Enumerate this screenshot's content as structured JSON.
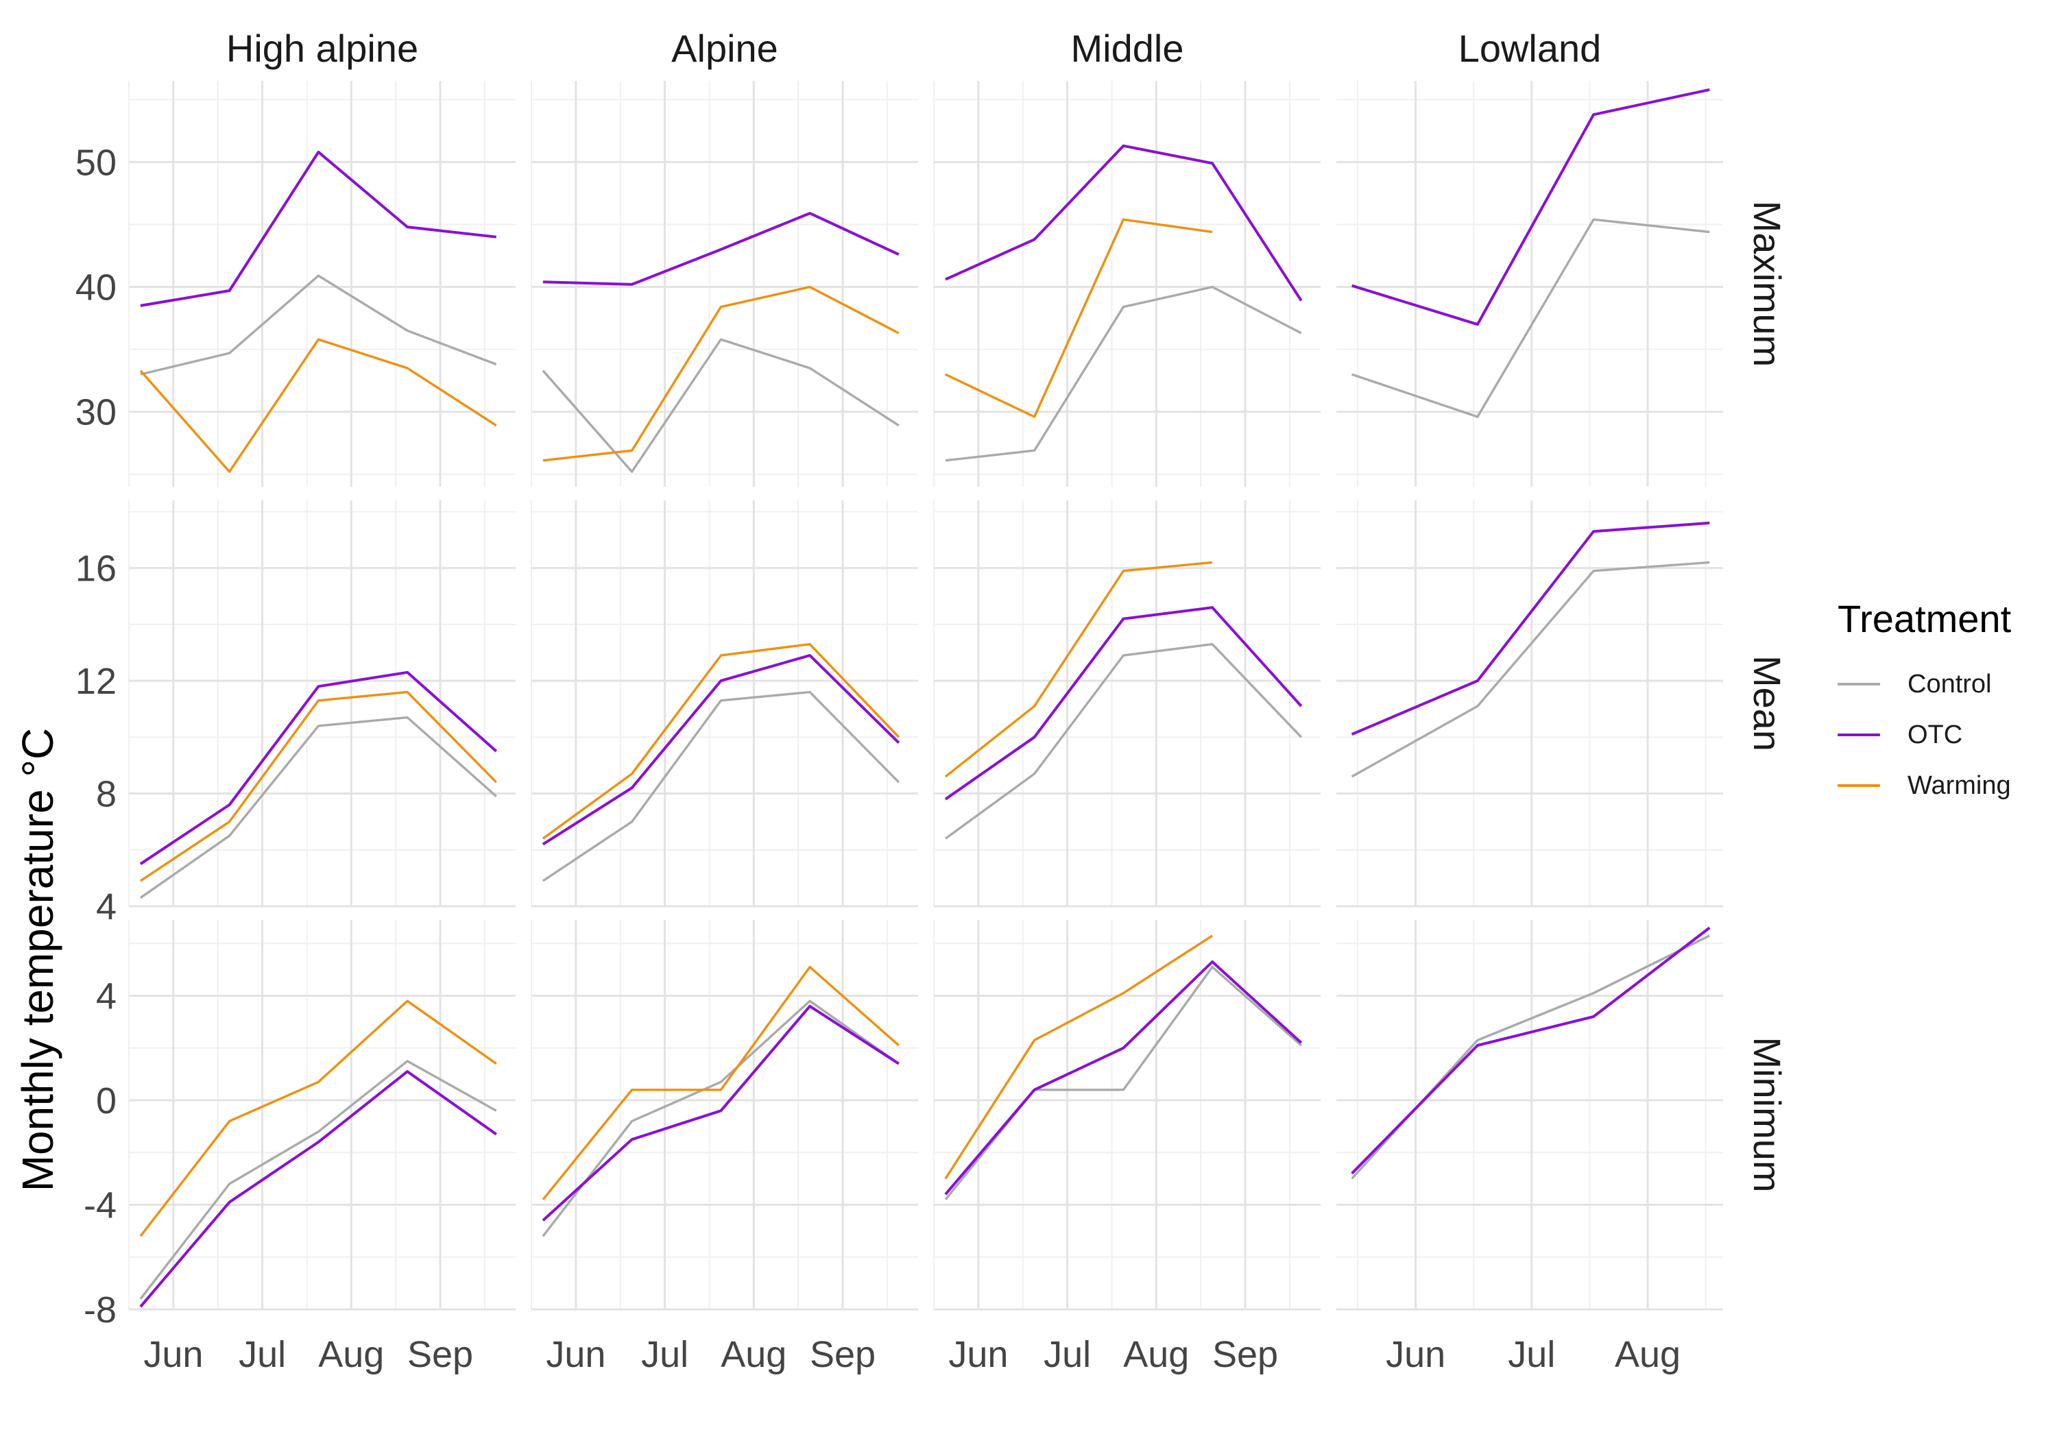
{
  "chart_data": {
    "type": "line",
    "ylabel": "Monthly temperature °C",
    "facet_columns": [
      "High alpine",
      "Alpine",
      "Middle",
      "Lowland"
    ],
    "facet_rows": [
      "Maximum",
      "Mean",
      "Minimum"
    ],
    "months": [
      "Jun",
      "Jul",
      "Aug",
      "Sep"
    ],
    "lowland_months": [
      "Jun",
      "Jul",
      "Aug"
    ],
    "x_dates": [
      "May 20",
      "Jun 19",
      "Jul 19",
      "Aug 18",
      "Sep 17"
    ],
    "rows": [
      {
        "name": "Maximum",
        "ylim": [
          24,
          56.5
        ],
        "yticks": [
          30,
          40,
          50
        ],
        "ytick_labels": [
          "30",
          "40",
          "50"
        ],
        "panels": {
          "High alpine": {
            "Control": [
              33.0,
              34.7,
              40.9,
              36.5,
              33.8
            ],
            "OTC": [
              38.5,
              39.7,
              50.8,
              44.8,
              44.0
            ],
            "Warming": [
              33.3,
              25.2,
              35.8,
              33.5,
              28.9
            ]
          },
          "Alpine": {
            "Control": [
              33.3,
              25.2,
              35.8,
              33.5,
              28.9
            ],
            "OTC": [
              40.4,
              40.2,
              43.0,
              45.9,
              42.6
            ],
            "Warming": [
              26.1,
              26.9,
              38.4,
              40.0,
              36.3
            ]
          },
          "Middle": {
            "Control": [
              26.1,
              26.9,
              38.4,
              40.0,
              36.3
            ],
            "OTC": [
              40.6,
              43.8,
              51.3,
              49.9,
              38.9
            ],
            "Warming": [
              33.0,
              29.6,
              45.4,
              44.4,
              null
            ]
          },
          "Lowland": {
            "Control": [
              33.0,
              29.6,
              45.4,
              44.4
            ],
            "OTC": [
              40.1,
              37.0,
              53.8,
              55.8
            ],
            "Warming": [
              null,
              null,
              null,
              null
            ]
          }
        }
      },
      {
        "name": "Mean",
        "ylim": [
          4,
          18.4
        ],
        "yticks": [
          4,
          8,
          12,
          16
        ],
        "ytick_labels": [
          "4",
          "8",
          "12",
          "16"
        ],
        "panels": {
          "High alpine": {
            "Control": [
              4.3,
              6.5,
              10.4,
              10.7,
              7.9
            ],
            "OTC": [
              5.5,
              7.6,
              11.8,
              12.3,
              9.5
            ],
            "Warming": [
              4.9,
              7.0,
              11.3,
              11.6,
              8.4
            ]
          },
          "Alpine": {
            "Control": [
              4.9,
              7.0,
              11.3,
              11.6,
              8.4
            ],
            "OTC": [
              6.2,
              8.2,
              12.0,
              12.9,
              9.8
            ],
            "Warming": [
              6.4,
              8.7,
              12.9,
              13.3,
              10.0
            ]
          },
          "Middle": {
            "Control": [
              6.4,
              8.7,
              12.9,
              13.3,
              10.0
            ],
            "OTC": [
              7.8,
              10.0,
              14.2,
              14.6,
              11.1
            ],
            "Warming": [
              8.6,
              11.1,
              15.9,
              16.2,
              null
            ]
          },
          "Lowland": {
            "Control": [
              8.6,
              11.1,
              15.9,
              16.2
            ],
            "OTC": [
              10.1,
              12.0,
              17.3,
              17.6
            ],
            "Warming": [
              null,
              null,
              null,
              null
            ]
          }
        }
      },
      {
        "name": "Minimum",
        "ylim": [
          -8,
          6.9
        ],
        "yticks": [
          -8,
          -4,
          0,
          4
        ],
        "ytick_labels": [
          "-8",
          "-4",
          "0",
          "4"
        ],
        "panels": {
          "High alpine": {
            "Control": [
              -7.6,
              -3.2,
              -1.2,
              1.5,
              -0.4
            ],
            "OTC": [
              -7.9,
              -3.9,
              -1.6,
              1.1,
              -1.3
            ],
            "Warming": [
              -5.2,
              -0.8,
              0.7,
              3.8,
              1.4
            ]
          },
          "Alpine": {
            "Control": [
              -5.2,
              -0.8,
              0.7,
              3.8,
              1.4
            ],
            "OTC": [
              -4.6,
              -1.5,
              -0.4,
              3.6,
              1.4
            ],
            "Warming": [
              -3.8,
              0.4,
              0.4,
              5.1,
              2.1
            ]
          },
          "Middle": {
            "Control": [
              -3.8,
              0.4,
              0.4,
              5.1,
              2.1
            ],
            "OTC": [
              -3.6,
              0.4,
              2.0,
              5.3,
              2.2
            ],
            "Warming": [
              -3.0,
              2.3,
              4.1,
              6.3,
              null
            ]
          },
          "Lowland": {
            "Control": [
              -3.0,
              2.3,
              4.1,
              6.3
            ],
            "OTC": [
              -2.8,
              2.1,
              3.2,
              6.6
            ],
            "Warming": [
              null,
              null,
              null,
              null
            ]
          }
        }
      }
    ],
    "legend": {
      "title": "Treatment",
      "position": "right",
      "entries": [
        {
          "name": "Control",
          "color": "#aaaaaa"
        },
        {
          "name": "OTC",
          "color": "#8a0fd6"
        },
        {
          "name": "Warming",
          "color": "#f0900e"
        }
      ]
    },
    "grid": true
  }
}
